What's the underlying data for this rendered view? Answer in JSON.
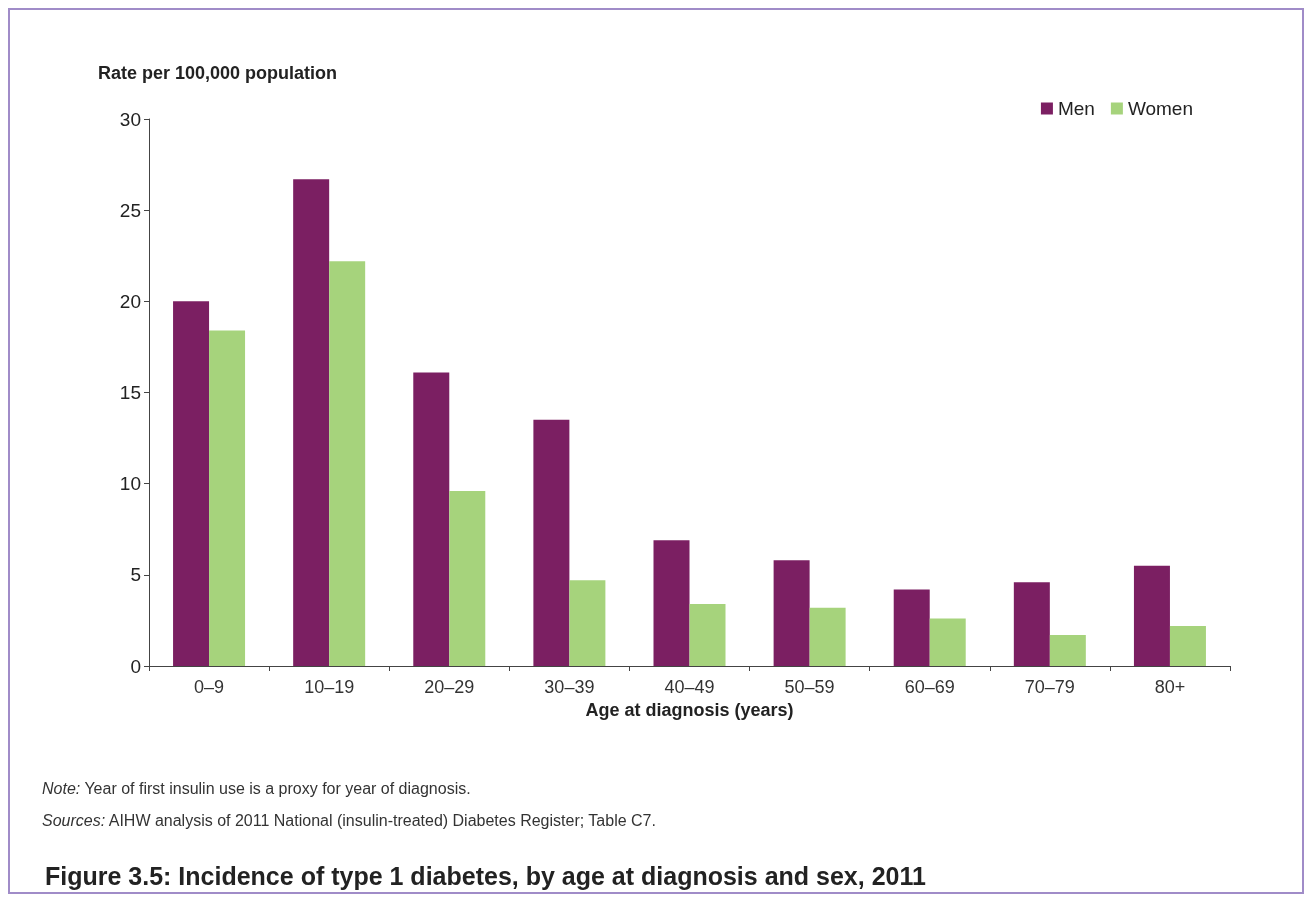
{
  "chart_data": {
    "type": "bar",
    "title": "Figure 3.5: Incidence of type 1 diabetes, by age at diagnosis and sex, 2011",
    "xlabel": "Age at diagnosis (years)",
    "ylabel": "Rate per 100,000 population",
    "categories": [
      "0–9",
      "10–19",
      "20–29",
      "30–39",
      "40–49",
      "50–59",
      "60–69",
      "70–79",
      "80+"
    ],
    "series": [
      {
        "name": "Men",
        "color": "#7b1f62",
        "values": [
          20.0,
          26.7,
          16.1,
          13.5,
          6.9,
          5.8,
          4.2,
          4.6,
          5.5
        ]
      },
      {
        "name": "Women",
        "color": "#a6d37c",
        "values": [
          18.4,
          22.2,
          9.6,
          4.7,
          3.4,
          3.2,
          2.6,
          1.7,
          2.2
        ]
      }
    ],
    "ylim": [
      0,
      30
    ],
    "yticks": [
      0,
      5,
      10,
      15,
      20,
      25,
      30
    ],
    "grid": false,
    "legend": "top right",
    "annotations": [
      "Note: Year of first insulin use is a proxy for year of diagnosis.",
      "Sources: AIHW analysis of 2011 National (insulin-treated) Diabetes Register; Table C7."
    ]
  }
}
